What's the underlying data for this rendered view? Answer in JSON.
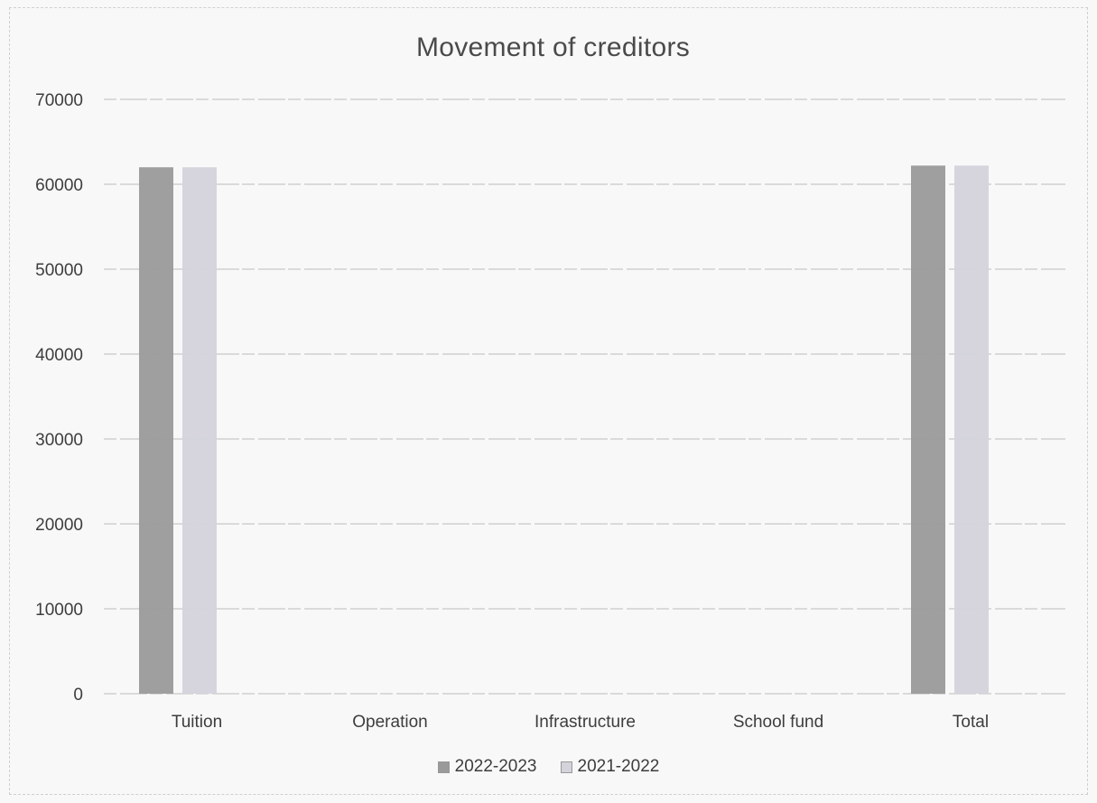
{
  "chart_data": {
    "type": "bar",
    "title": "Movement of creditors",
    "categories": [
      "Tuition",
      "Operation",
      "Infrastructure",
      "School fund",
      "Total"
    ],
    "series": [
      {
        "name": "2022-2023",
        "values": [
          62000,
          0,
          0,
          0,
          62200
        ],
        "color": "#9a9a9a"
      },
      {
        "name": "2021-2022",
        "values": [
          62000,
          0,
          0,
          0,
          62200
        ],
        "color": "#d4d3dc"
      }
    ],
    "ylim": [
      0,
      70000
    ],
    "yticks": [
      "0",
      "10000",
      "20000",
      "30000",
      "40000",
      "50000",
      "60000",
      "70000"
    ],
    "grid": true,
    "legend_position": "bottom"
  }
}
